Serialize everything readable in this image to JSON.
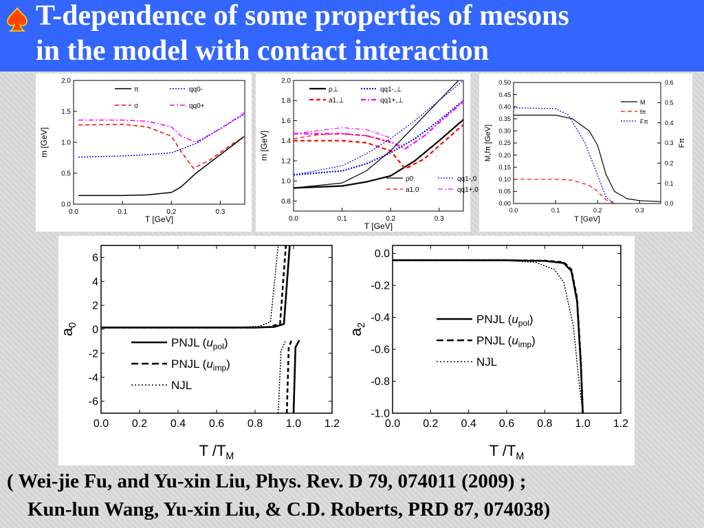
{
  "slide": {
    "title_line1": "T-dependence of some properties of mesons",
    "title_line2": "in the model with contact interaction",
    "bullet_icon": "spade-icon",
    "citation_line1": "( Wei-jie Fu, and  Yu-xin Liu,  Phys. Rev. D 79, 074011 (2009) ;",
    "citation_line2": "Kun-lun Wang, Yu-xin Liu, & C.D. Roberts, PRD 87, 074038)",
    "colors": {
      "header": "#3366ff",
      "title": "#ffffff",
      "bullet": "#ff4400"
    }
  },
  "chart_data": [
    {
      "id": "c1",
      "type": "line",
      "xlabel": "T [GeV]",
      "ylabel": "m [GeV]",
      "xlim": [
        0,
        0.35
      ],
      "ylim": [
        0,
        2.0
      ],
      "xticks": [
        "0.0",
        "0.1",
        "0.2",
        "0.3"
      ],
      "yticks": [
        "0.0",
        "0.5",
        "1.0",
        "1.5",
        "2.0"
      ],
      "legend": [
        "π",
        "σ",
        "qq0-",
        "qq0+"
      ],
      "series": [
        {
          "name": "π",
          "style": "solid",
          "color": "#000000",
          "x": [
            0.01,
            0.1,
            0.15,
            0.2,
            0.22,
            0.25,
            0.3,
            0.35
          ],
          "y": [
            0.14,
            0.14,
            0.15,
            0.19,
            0.28,
            0.5,
            0.8,
            1.1
          ]
        },
        {
          "name": "σ",
          "style": "dash",
          "color": "#ff0000",
          "x": [
            0.01,
            0.1,
            0.15,
            0.2,
            0.22,
            0.245,
            0.28,
            0.32,
            0.35
          ],
          "y": [
            1.28,
            1.29,
            1.25,
            1.1,
            0.85,
            0.58,
            0.72,
            0.95,
            1.1
          ]
        },
        {
          "name": "qq0-",
          "style": "dot",
          "color": "#0000ff",
          "x": [
            0.01,
            0.1,
            0.15,
            0.2,
            0.25,
            0.3,
            0.35
          ],
          "y": [
            0.76,
            0.78,
            0.8,
            0.83,
            0.98,
            1.22,
            1.46
          ]
        },
        {
          "name": "qq0+",
          "style": "dashdot",
          "color": "#ff00ff",
          "x": [
            0.01,
            0.1,
            0.15,
            0.2,
            0.22,
            0.25,
            0.3,
            0.35
          ],
          "y": [
            1.36,
            1.36,
            1.34,
            1.25,
            1.1,
            1.0,
            1.22,
            1.48
          ]
        }
      ]
    },
    {
      "id": "c2",
      "type": "line",
      "xlabel": "T [GeV]",
      "ylabel": "m [GeV]",
      "xlim": [
        0,
        0.35
      ],
      "ylim": [
        0.7,
        2.0
      ],
      "xticks": [
        "0.0",
        "0.1",
        "0.2",
        "0.3"
      ],
      "yticks": [
        "0.8",
        "1.0",
        "1.2",
        "1.4",
        "1.6",
        "1.8",
        "2.0"
      ],
      "legend": [
        "ρ⊥",
        "qq1-,⊥",
        "a1,⊥",
        "qq1+,⊥",
        "ρ0",
        "qq1-,0",
        "a1,0",
        "qq1+,0"
      ],
      "series": [
        {
          "name": "ρ⊥",
          "style": "solid-bold",
          "color": "#000000",
          "x": [
            0.0,
            0.1,
            0.15,
            0.2,
            0.25,
            0.3,
            0.35
          ],
          "y": [
            0.93,
            0.95,
            0.99,
            1.05,
            1.2,
            1.4,
            1.61
          ]
        },
        {
          "name": "qq1-,⊥",
          "style": "dot-bold",
          "color": "#0000ff",
          "x": [
            0.0,
            0.1,
            0.15,
            0.2,
            0.25,
            0.3,
            0.35
          ],
          "y": [
            1.06,
            1.1,
            1.17,
            1.28,
            1.42,
            1.6,
            1.8
          ]
        },
        {
          "name": "a1,⊥",
          "style": "dash-bold",
          "color": "#ff0000",
          "x": [
            0.0,
            0.1,
            0.15,
            0.2,
            0.23,
            0.27,
            0.3,
            0.35
          ],
          "y": [
            1.4,
            1.4,
            1.38,
            1.3,
            1.12,
            1.22,
            1.35,
            1.56
          ]
        },
        {
          "name": "qq1+,⊥",
          "style": "dashdot-bold",
          "color": "#ff00ff",
          "x": [
            0.0,
            0.1,
            0.15,
            0.2,
            0.23,
            0.27,
            0.3,
            0.35
          ],
          "y": [
            1.47,
            1.47,
            1.45,
            1.39,
            1.32,
            1.45,
            1.58,
            1.79
          ]
        },
        {
          "name": "ρ0",
          "style": "solid",
          "color": "#000000",
          "x": [
            0.0,
            0.1,
            0.15,
            0.2,
            0.25,
            0.3,
            0.35
          ],
          "y": [
            0.93,
            0.98,
            1.1,
            1.3,
            1.55,
            1.8,
            2.05
          ]
        },
        {
          "name": "qq1-,0",
          "style": "dot",
          "color": "#0000ff",
          "x": [
            0.0,
            0.1,
            0.15,
            0.2,
            0.25,
            0.3,
            0.35
          ],
          "y": [
            1.06,
            1.15,
            1.27,
            1.42,
            1.6,
            1.8,
            2.0
          ]
        },
        {
          "name": "a1,0",
          "style": "dash",
          "color": "#ff0000",
          "x": [
            0.0,
            0.05,
            0.1,
            0.15,
            0.2
          ],
          "y": [
            1.42,
            1.46,
            1.47,
            1.45,
            1.38
          ]
        },
        {
          "name": "qq1+,0",
          "style": "dashdot",
          "color": "#ff00ff",
          "x": [
            0.0,
            0.05,
            0.1,
            0.15,
            0.2
          ],
          "y": [
            1.47,
            1.5,
            1.53,
            1.51,
            1.43
          ]
        }
      ]
    },
    {
      "id": "c3",
      "type": "line",
      "xlabel": "T [GeV]",
      "ylabel": "M,fπ [GeV]",
      "y2label": "Fπ",
      "xlim": [
        0,
        0.35
      ],
      "ylim": [
        0,
        0.5
      ],
      "y2lim": [
        0,
        0.6
      ],
      "xticks": [
        "0.0",
        "0.1",
        "0.2",
        "0.3"
      ],
      "yticks": [
        "0.00",
        "0.05",
        "0.10",
        "0.15",
        "0.20",
        "0.25",
        "0.30",
        "0.35",
        "0.40",
        "0.45",
        "0.50"
      ],
      "y2ticks": [
        "0.0",
        "0.1",
        "0.2",
        "0.3",
        "0.4",
        "0.5",
        "0.6"
      ],
      "legend": [
        "M",
        "fπ",
        "Fπ"
      ],
      "series": [
        {
          "name": "M",
          "style": "solid",
          "color": "#000000",
          "axis": "left",
          "x": [
            0.0,
            0.1,
            0.14,
            0.18,
            0.2,
            0.22,
            0.24,
            0.27,
            0.3,
            0.35
          ],
          "y": [
            0.365,
            0.365,
            0.35,
            0.3,
            0.24,
            0.12,
            0.05,
            0.02,
            0.012,
            0.008
          ]
        },
        {
          "name": "fπ",
          "style": "dash",
          "color": "#ff0000",
          "axis": "left",
          "x": [
            0.0,
            0.1,
            0.14,
            0.18,
            0.2,
            0.22,
            0.24
          ],
          "y": [
            0.1,
            0.1,
            0.096,
            0.075,
            0.05,
            0.015,
            0.0
          ]
        },
        {
          "name": "Fπ",
          "style": "dot",
          "color": "#0000ff",
          "axis": "right",
          "x": [
            0.0,
            0.1,
            0.13,
            0.17,
            0.2,
            0.22,
            0.24
          ],
          "y": [
            0.475,
            0.47,
            0.44,
            0.3,
            0.14,
            0.03,
            0.0
          ]
        }
      ]
    },
    {
      "id": "c4",
      "type": "line",
      "xlabel": "T /T",
      "xlabel_sub": "M",
      "ylabel": "a",
      "ylabel_sub": "0",
      "xlim": [
        0,
        1.2
      ],
      "ylim": [
        -7,
        7
      ],
      "xticks": [
        "0.0",
        "0.2",
        "0.4",
        "0.6",
        "0.8",
        "1.0",
        "1.2"
      ],
      "yticks": [
        "-6",
        "-4",
        "-2",
        "0",
        "2",
        "4",
        "6"
      ],
      "legend": [
        {
          "name": "PNJL (",
          "var": "u",
          "sub": "pol",
          "close": ")"
        },
        {
          "name": "PNJL (",
          "var": "u",
          "sub": "imp",
          "close": ")"
        },
        {
          "name": "NJL",
          "var": "",
          "sub": "",
          "close": ""
        }
      ],
      "series": [
        {
          "name": "PNJL (u_pol)",
          "style": "solid-bold",
          "color": "#000000",
          "segments": [
            {
              "x": [
                0.0,
                0.8,
                0.9,
                0.95,
                0.98
              ],
              "y": [
                0.15,
                0.15,
                0.2,
                0.45,
                7
              ]
            },
            {
              "x": [
                1.0,
                1.01,
                1.03
              ],
              "y": [
                -7,
                -1.5,
                -0.9
              ]
            }
          ]
        },
        {
          "name": "PNJL (u_imp)",
          "style": "dash-bold",
          "color": "#000000",
          "segments": [
            {
              "x": [
                0.0,
                0.8,
                0.88,
                0.93,
                0.96
              ],
              "y": [
                0.15,
                0.15,
                0.2,
                0.5,
                7
              ]
            },
            {
              "x": [
                0.965,
                0.975,
                0.99
              ],
              "y": [
                -7,
                -1.5,
                -0.9
              ]
            }
          ]
        },
        {
          "name": "NJL",
          "style": "dot",
          "color": "#000000",
          "segments": [
            {
              "x": [
                0.0,
                0.7,
                0.82,
                0.88,
                0.92
              ],
              "y": [
                0.15,
                0.15,
                0.25,
                0.6,
                7
              ]
            },
            {
              "x": [
                0.92,
                0.935,
                0.96
              ],
              "y": [
                -7,
                -1.8,
                -0.9
              ]
            }
          ]
        }
      ]
    },
    {
      "id": "c5",
      "type": "line",
      "xlabel": "T /T",
      "xlabel_sub": "M",
      "ylabel": "a",
      "ylabel_sub": "2",
      "xlim": [
        0,
        1.2
      ],
      "ylim": [
        -1.0,
        0.05
      ],
      "xticks": [
        "0.0",
        "0.2",
        "0.4",
        "0.6",
        "0.8",
        "1.0",
        "1.2"
      ],
      "yticks": [
        "-1.0",
        "-0.8",
        "-0.6",
        "-0.4",
        "-0.2",
        "0.0"
      ],
      "legend": [
        {
          "name": "PNJL (",
          "var": "u",
          "sub": "pol",
          "close": ")"
        },
        {
          "name": "PNJL (",
          "var": "u",
          "sub": "imp",
          "close": ")"
        },
        {
          "name": "NJL",
          "var": "",
          "sub": "",
          "close": ""
        }
      ],
      "series": [
        {
          "name": "PNJL (u_pol)",
          "style": "solid-bold",
          "color": "#000000",
          "x": [
            0.0,
            0.6,
            0.8,
            0.9,
            0.94,
            0.97,
            0.99,
            1.0
          ],
          "y": [
            -0.043,
            -0.043,
            -0.047,
            -0.06,
            -0.11,
            -0.3,
            -0.7,
            -1.0
          ]
        },
        {
          "name": "PNJL (u_imp)",
          "style": "dash-bold",
          "color": "#000000",
          "x": [
            0.0,
            0.6,
            0.8,
            0.9,
            0.94,
            0.97,
            0.99,
            1.0
          ],
          "y": [
            -0.043,
            -0.043,
            -0.045,
            -0.055,
            -0.1,
            -0.28,
            -0.68,
            -1.0
          ]
        },
        {
          "name": "NJL",
          "style": "dot",
          "color": "#000000",
          "x": [
            0.0,
            0.6,
            0.75,
            0.85,
            0.9,
            0.95,
            0.98,
            1.0
          ],
          "y": [
            -0.043,
            -0.045,
            -0.055,
            -0.1,
            -0.18,
            -0.45,
            -0.8,
            -1.0
          ]
        }
      ]
    }
  ]
}
